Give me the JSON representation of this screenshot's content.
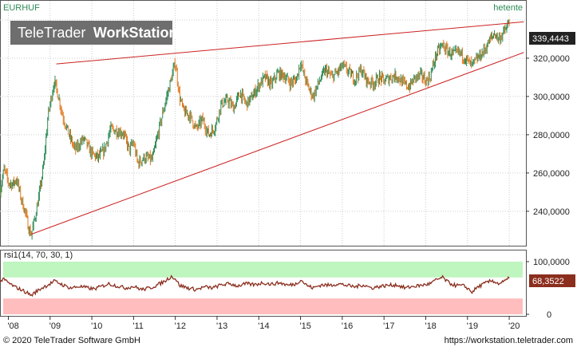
{
  "header": {
    "symbol": "EURHUF",
    "period": "hetente"
  },
  "watermark": {
    "brand": "TeleTrader",
    "product": "WorkStation"
  },
  "footer": {
    "copyright": "© 2020 TeleTrader Software GmbH",
    "url": "https://workstation.teletrader.com"
  },
  "colors": {
    "up": "#2e8b57",
    "down": "#e07b22",
    "trend": "#cc2222",
    "rsi": "#8b2e1e",
    "overbought": "#bff5bf",
    "oversold": "#ffbdbd",
    "last_bg": "#222222"
  },
  "chart_data": [
    {
      "type": "candlestick",
      "title": "EURHUF",
      "last_value_label": "339,4443",
      "y_ticks": [
        "240,0000",
        "260,0000",
        "280,0000",
        "300,0000",
        "320,0000"
      ],
      "y_tick_values": [
        240,
        260,
        280,
        300,
        320
      ],
      "ylim": [
        222,
        350
      ],
      "x_ticks": [
        "'08",
        "'09",
        "'10",
        "'11",
        "'12",
        "'13",
        "'14",
        "'15",
        "'16",
        "'17",
        "'18",
        "'19",
        "'20"
      ],
      "x_tick_values": [
        2008,
        2009,
        2010,
        2011,
        2012,
        2013,
        2014,
        2015,
        2016,
        2017,
        2018,
        2019,
        2020
      ],
      "xlim": [
        2007.8,
        2020.4
      ],
      "series": [
        {
          "values": [
            [
              2007.8,
              251
            ],
            [
              2007.9,
              262
            ],
            [
              2008.0,
              255
            ],
            [
              2008.1,
              254
            ],
            [
              2008.2,
              257
            ],
            [
              2008.3,
              247
            ],
            [
              2008.4,
              240
            ],
            [
              2008.5,
              230
            ],
            [
              2008.55,
              228
            ],
            [
              2008.65,
              238
            ],
            [
              2008.75,
              250
            ],
            [
              2008.85,
              265
            ],
            [
              2008.95,
              290
            ],
            [
              2009.1,
              308
            ],
            [
              2009.2,
              300
            ],
            [
              2009.3,
              290
            ],
            [
              2009.45,
              280
            ],
            [
              2009.6,
              272
            ],
            [
              2009.8,
              278
            ],
            [
              2010.0,
              270
            ],
            [
              2010.15,
              268
            ],
            [
              2010.3,
              272
            ],
            [
              2010.45,
              283
            ],
            [
              2010.6,
              282
            ],
            [
              2010.75,
              281
            ],
            [
              2010.9,
              272
            ],
            [
              2011.0,
              276
            ],
            [
              2011.1,
              265
            ],
            [
              2011.25,
              268
            ],
            [
              2011.45,
              267
            ],
            [
              2011.6,
              282
            ],
            [
              2011.75,
              296
            ],
            [
              2011.9,
              309
            ],
            [
              2012.0,
              318
            ],
            [
              2012.1,
              300
            ],
            [
              2012.2,
              292
            ],
            [
              2012.35,
              290
            ],
            [
              2012.5,
              283
            ],
            [
              2012.65,
              288
            ],
            [
              2012.8,
              280
            ],
            [
              2012.95,
              284
            ],
            [
              2013.1,
              296
            ],
            [
              2013.25,
              298
            ],
            [
              2013.4,
              294
            ],
            [
              2013.55,
              302
            ],
            [
              2013.7,
              296
            ],
            [
              2013.85,
              300
            ],
            [
              2014.0,
              306
            ],
            [
              2014.15,
              310
            ],
            [
              2014.3,
              306
            ],
            [
              2014.45,
              312
            ],
            [
              2014.6,
              311
            ],
            [
              2014.75,
              307
            ],
            [
              2014.9,
              309
            ],
            [
              2015.0,
              318
            ],
            [
              2015.1,
              310
            ],
            [
              2015.2,
              304
            ],
            [
              2015.3,
              300
            ],
            [
              2015.45,
              308
            ],
            [
              2015.6,
              314
            ],
            [
              2015.75,
              310
            ],
            [
              2015.9,
              313
            ],
            [
              2016.0,
              316
            ],
            [
              2016.15,
              313
            ],
            [
              2016.3,
              309
            ],
            [
              2016.45,
              314
            ],
            [
              2016.6,
              308
            ],
            [
              2016.75,
              307
            ],
            [
              2016.9,
              310
            ],
            [
              2017.0,
              308
            ],
            [
              2017.15,
              310
            ],
            [
              2017.3,
              311
            ],
            [
              2017.45,
              307
            ],
            [
              2017.6,
              305
            ],
            [
              2017.75,
              310
            ],
            [
              2017.9,
              311
            ],
            [
              2018.0,
              308
            ],
            [
              2018.1,
              310
            ],
            [
              2018.25,
              322
            ],
            [
              2018.4,
              327
            ],
            [
              2018.5,
              324
            ],
            [
              2018.65,
              322
            ],
            [
              2018.8,
              323
            ],
            [
              2018.95,
              320
            ],
            [
              2019.1,
              316
            ],
            [
              2019.25,
              320
            ],
            [
              2019.4,
              324
            ],
            [
              2019.55,
              330
            ],
            [
              2019.65,
              333
            ],
            [
              2019.75,
              330
            ],
            [
              2019.85,
              333
            ],
            [
              2019.95,
              336
            ],
            [
              2020.0,
              339.4443
            ]
          ]
        }
      ],
      "trendlines": [
        {
          "x": [
            2009.15,
            2020.35
          ],
          "y": [
            317,
            339
          ]
        },
        {
          "x": [
            2008.55,
            2020.35
          ],
          "y": [
            228,
            323
          ]
        }
      ]
    },
    {
      "type": "line",
      "title": "rsi1(14, 70, 30, 1)",
      "last_value_label": "68,3522",
      "y_ticks": [
        "0",
        "100,0000"
      ],
      "y_tick_values": [
        0,
        100
      ],
      "ylim": [
        0,
        100
      ],
      "bands": [
        {
          "from": 70,
          "to": 100
        },
        {
          "from": 0,
          "to": 30
        }
      ],
      "series": [
        {
          "values": [
            [
              2007.8,
              63
            ],
            [
              2007.9,
              66
            ],
            [
              2008.0,
              60
            ],
            [
              2008.15,
              52
            ],
            [
              2008.3,
              47
            ],
            [
              2008.45,
              41
            ],
            [
              2008.55,
              36
            ],
            [
              2008.7,
              45
            ],
            [
              2008.85,
              52
            ],
            [
              2009.0,
              58
            ],
            [
              2009.1,
              63
            ],
            [
              2009.2,
              60
            ],
            [
              2009.35,
              54
            ],
            [
              2009.5,
              50
            ],
            [
              2009.7,
              53
            ],
            [
              2009.9,
              50
            ],
            [
              2010.05,
              48
            ],
            [
              2010.2,
              52
            ],
            [
              2010.4,
              58
            ],
            [
              2010.6,
              54
            ],
            [
              2010.8,
              50
            ],
            [
              2011.0,
              53
            ],
            [
              2011.2,
              47
            ],
            [
              2011.4,
              50
            ],
            [
              2011.6,
              57
            ],
            [
              2011.75,
              63
            ],
            [
              2011.9,
              72
            ],
            [
              2012.0,
              68
            ],
            [
              2012.1,
              55
            ],
            [
              2012.3,
              50
            ],
            [
              2012.5,
              47
            ],
            [
              2012.7,
              52
            ],
            [
              2012.9,
              50
            ],
            [
              2013.1,
              56
            ],
            [
              2013.3,
              58
            ],
            [
              2013.5,
              54
            ],
            [
              2013.7,
              58
            ],
            [
              2013.9,
              56
            ],
            [
              2014.1,
              60
            ],
            [
              2014.3,
              57
            ],
            [
              2014.5,
              60
            ],
            [
              2014.7,
              55
            ],
            [
              2014.9,
              58
            ],
            [
              2015.0,
              66
            ],
            [
              2015.15,
              55
            ],
            [
              2015.3,
              50
            ],
            [
              2015.5,
              56
            ],
            [
              2015.7,
              55
            ],
            [
              2015.9,
              58
            ],
            [
              2016.1,
              55
            ],
            [
              2016.3,
              52
            ],
            [
              2016.5,
              56
            ],
            [
              2016.7,
              50
            ],
            [
              2016.9,
              53
            ],
            [
              2017.1,
              55
            ],
            [
              2017.3,
              56
            ],
            [
              2017.5,
              50
            ],
            [
              2017.7,
              53
            ],
            [
              2017.9,
              55
            ],
            [
              2018.1,
              58
            ],
            [
              2018.25,
              65
            ],
            [
              2018.4,
              70
            ],
            [
              2018.55,
              60
            ],
            [
              2018.7,
              55
            ],
            [
              2018.9,
              54
            ],
            [
              2019.0,
              50
            ],
            [
              2019.1,
              42
            ],
            [
              2019.25,
              52
            ],
            [
              2019.45,
              60
            ],
            [
              2019.6,
              64
            ],
            [
              2019.75,
              58
            ],
            [
              2019.9,
              63
            ],
            [
              2020.0,
              68.3522
            ]
          ]
        }
      ]
    }
  ]
}
